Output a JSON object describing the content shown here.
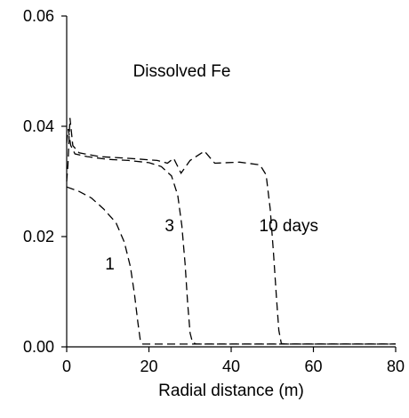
{
  "chart_data": {
    "type": "line",
    "title": "",
    "xlabel": "Radial distance (m)",
    "ylabel": "",
    "xlim": [
      0,
      80
    ],
    "ylim": [
      0,
      0.06
    ],
    "x_ticks": [
      0,
      20,
      40,
      60,
      80
    ],
    "y_ticks": [
      0.0,
      0.02,
      0.04,
      0.06
    ],
    "x_tick_labels": [
      "0",
      "20",
      "40",
      "60",
      "80"
    ],
    "y_tick_labels": [
      "0.00",
      "0.02",
      "0.04",
      "0.06"
    ],
    "grid": false,
    "line_color": "#000000",
    "line_style": "dashed",
    "annotations": [
      {
        "text": "Dissolved Fe",
        "x": 28,
        "y": 0.049
      },
      {
        "text": "1",
        "x": 10.5,
        "y": 0.014
      },
      {
        "text": "3",
        "x": 25,
        "y": 0.021
      },
      {
        "text": "10 days",
        "x": 54,
        "y": 0.021
      }
    ],
    "series": [
      {
        "points": [
          [
            0,
            0.029
          ],
          [
            3,
            0.0282
          ],
          [
            6,
            0.027
          ],
          [
            9,
            0.025
          ],
          [
            12,
            0.0225
          ],
          [
            14,
            0.019
          ],
          [
            15.5,
            0.0145
          ],
          [
            16.5,
            0.0095
          ],
          [
            17.3,
            0.0045
          ],
          [
            17.9,
            0.0012
          ],
          [
            18.5,
            0.0005
          ],
          [
            30,
            0.0005
          ],
          [
            50,
            0.0005
          ],
          [
            80,
            0.0005
          ]
        ]
      },
      {
        "points": [
          [
            0,
            0.037
          ],
          [
            0.4,
            0.0395
          ],
          [
            1,
            0.0365
          ],
          [
            2,
            0.035
          ],
          [
            5,
            0.0345
          ],
          [
            10,
            0.034
          ],
          [
            15,
            0.0338
          ],
          [
            20,
            0.0334
          ],
          [
            23,
            0.0327
          ],
          [
            25.5,
            0.031
          ],
          [
            27,
            0.0275
          ],
          [
            28,
            0.022
          ],
          [
            28.8,
            0.015
          ],
          [
            29.4,
            0.008
          ],
          [
            30,
            0.0025
          ],
          [
            30.6,
            0.0008
          ],
          [
            31.5,
            0.0005
          ],
          [
            50,
            0.0005
          ],
          [
            80,
            0.0005
          ]
        ]
      },
      {
        "points": [
          [
            0,
            0.03
          ],
          [
            0.3,
            0.033
          ],
          [
            0.8,
            0.0415
          ],
          [
            1.5,
            0.0365
          ],
          [
            3,
            0.0352
          ],
          [
            8,
            0.0345
          ],
          [
            15,
            0.0342
          ],
          [
            22,
            0.0338
          ],
          [
            24.5,
            0.0333
          ],
          [
            26,
            0.0342
          ],
          [
            27.8,
            0.0315
          ],
          [
            30,
            0.0338
          ],
          [
            33.5,
            0.0355
          ],
          [
            36,
            0.0333
          ],
          [
            42,
            0.0335
          ],
          [
            47,
            0.033
          ],
          [
            48.5,
            0.0312
          ],
          [
            49.5,
            0.025
          ],
          [
            50.3,
            0.017
          ],
          [
            51,
            0.009
          ],
          [
            51.6,
            0.003
          ],
          [
            52.2,
            0.0006
          ],
          [
            53.5,
            0.0005
          ],
          [
            80,
            0.0005
          ]
        ]
      }
    ]
  }
}
